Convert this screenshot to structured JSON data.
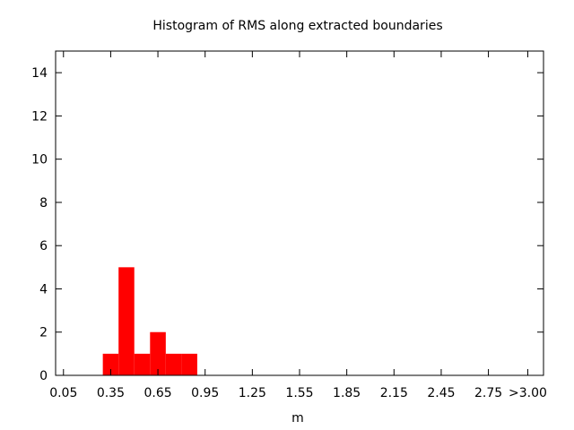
{
  "chart_data": {
    "type": "bar",
    "title": "Histogram of RMS along extracted boundaries",
    "xlabel": "m",
    "ylabel": "",
    "x_tick_labels": [
      "0.05",
      "0.35",
      "0.65",
      "0.95",
      "1.25",
      "1.55",
      "1.85",
      "2.15",
      "2.45",
      "2.75",
      ">3.00"
    ],
    "x_tick_values": [
      0.05,
      0.35,
      0.65,
      0.95,
      1.25,
      1.55,
      1.85,
      2.15,
      2.45,
      2.75,
      3.0
    ],
    "y_ticks": [
      0,
      2,
      4,
      6,
      8,
      10,
      12,
      14
    ],
    "xlim": [
      0.0,
      3.1
    ],
    "ylim": [
      0,
      15
    ],
    "bin_width": 0.1,
    "bin_centers": [
      0.35,
      0.45,
      0.55,
      0.65,
      0.75,
      0.85
    ],
    "values": [
      1,
      5,
      1,
      2,
      1,
      1
    ],
    "bar_color": "#ff0000",
    "grid": false,
    "legend": "none"
  }
}
